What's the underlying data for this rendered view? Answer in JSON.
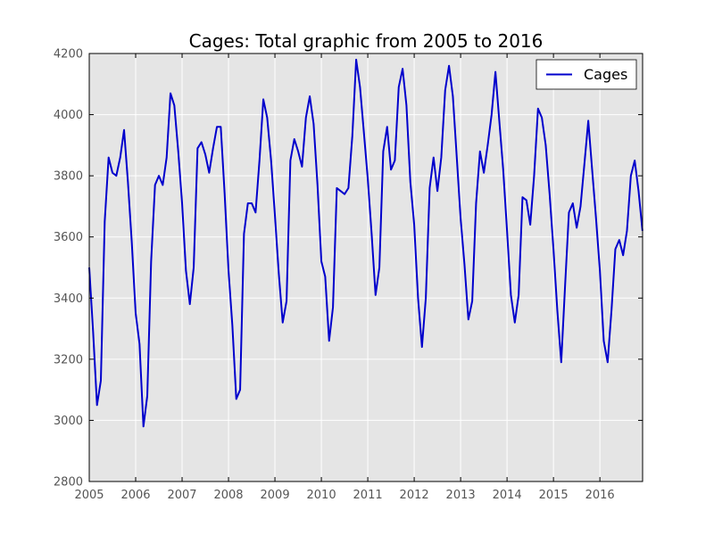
{
  "chart_data": {
    "type": "line",
    "title": "Cages: Total graphic from 2005 to 2016",
    "xlabel": "",
    "ylabel": "",
    "xlim": [
      2005,
      2016.92
    ],
    "ylim": [
      2800,
      4200
    ],
    "x_ticks": [
      2005,
      2006,
      2007,
      2008,
      2009,
      2010,
      2011,
      2012,
      2013,
      2014,
      2015,
      2016
    ],
    "x_tick_labels": [
      "2005",
      "2006",
      "2007",
      "2008",
      "2009",
      "2010",
      "2011",
      "2012",
      "2013",
      "2014",
      "2015",
      "2016"
    ],
    "y_ticks": [
      2800,
      3000,
      3200,
      3400,
      3600,
      3800,
      4000,
      4200
    ],
    "y_tick_labels": [
      "2800",
      "3000",
      "3200",
      "3400",
      "3600",
      "3800",
      "4000",
      "4200"
    ],
    "grid": true,
    "legend_position": "top-right",
    "background_color": "#e5e5e5",
    "grid_color": "#ffffff",
    "series": [
      {
        "name": "Cages",
        "color": "#0000cc",
        "x": [
          2005.0,
          2005.083,
          2005.167,
          2005.25,
          2005.333,
          2005.417,
          2005.5,
          2005.583,
          2005.667,
          2005.75,
          2005.833,
          2005.917,
          2006.0,
          2006.083,
          2006.167,
          2006.25,
          2006.333,
          2006.417,
          2006.5,
          2006.583,
          2006.667,
          2006.75,
          2006.833,
          2006.917,
          2007.0,
          2007.083,
          2007.167,
          2007.25,
          2007.333,
          2007.417,
          2007.5,
          2007.583,
          2007.667,
          2007.75,
          2007.833,
          2007.917,
          2008.0,
          2008.083,
          2008.167,
          2008.25,
          2008.333,
          2008.417,
          2008.5,
          2008.583,
          2008.667,
          2008.75,
          2008.833,
          2008.917,
          2009.0,
          2009.083,
          2009.167,
          2009.25,
          2009.333,
          2009.417,
          2009.5,
          2009.583,
          2009.667,
          2009.75,
          2009.833,
          2009.917,
          2010.0,
          2010.083,
          2010.167,
          2010.25,
          2010.333,
          2010.417,
          2010.5,
          2010.583,
          2010.667,
          2010.75,
          2010.833,
          2010.917,
          2011.0,
          2011.083,
          2011.167,
          2011.25,
          2011.333,
          2011.417,
          2011.5,
          2011.583,
          2011.667,
          2011.75,
          2011.833,
          2011.917,
          2012.0,
          2012.083,
          2012.167,
          2012.25,
          2012.333,
          2012.417,
          2012.5,
          2012.583,
          2012.667,
          2012.75,
          2012.833,
          2012.917,
          2013.0,
          2013.083,
          2013.167,
          2013.25,
          2013.333,
          2013.417,
          2013.5,
          2013.583,
          2013.667,
          2013.75,
          2013.833,
          2013.917,
          2014.0,
          2014.083,
          2014.167,
          2014.25,
          2014.333,
          2014.417,
          2014.5,
          2014.583,
          2014.667,
          2014.75,
          2014.833,
          2014.917,
          2015.0,
          2015.083,
          2015.167,
          2015.25,
          2015.333,
          2015.417,
          2015.5,
          2015.583,
          2015.667,
          2015.75,
          2015.833,
          2015.917,
          2016.0,
          2016.083,
          2016.167,
          2016.25,
          2016.333,
          2016.417,
          2016.5,
          2016.583,
          2016.667,
          2016.75,
          2016.833,
          2016.917
        ],
        "y": [
          3500,
          3290,
          3050,
          3130,
          3650,
          3860,
          3810,
          3800,
          3860,
          3950,
          3780,
          3580,
          3350,
          3250,
          2980,
          3080,
          3520,
          3770,
          3800,
          3770,
          3860,
          4070,
          4030,
          3880,
          3710,
          3490,
          3380,
          3500,
          3890,
          3910,
          3870,
          3810,
          3890,
          3960,
          3960,
          3740,
          3490,
          3310,
          3070,
          3100,
          3610,
          3710,
          3710,
          3680,
          3850,
          4050,
          3990,
          3850,
          3670,
          3480,
          3320,
          3390,
          3850,
          3920,
          3880,
          3830,
          3990,
          4060,
          3970,
          3770,
          3520,
          3470,
          3260,
          3370,
          3760,
          3750,
          3740,
          3760,
          3930,
          4180,
          4090,
          3940,
          3790,
          3610,
          3410,
          3500,
          3880,
          3960,
          3820,
          3850,
          4090,
          4150,
          4030,
          3780,
          3640,
          3400,
          3240,
          3400,
          3760,
          3860,
          3750,
          3860,
          4080,
          4160,
          4060,
          3860,
          3660,
          3510,
          3330,
          3390,
          3710,
          3880,
          3810,
          3900,
          4000,
          4140,
          3980,
          3820,
          3620,
          3410,
          3320,
          3410,
          3730,
          3720,
          3640,
          3800,
          4020,
          3990,
          3900,
          3740,
          3560,
          3360,
          3190,
          3440,
          3680,
          3710,
          3630,
          3700,
          3840,
          3980,
          3820,
          3660,
          3490,
          3260,
          3190,
          3360,
          3560,
          3590,
          3540,
          3620,
          3800,
          3850,
          3750,
          3620
        ]
      }
    ]
  }
}
